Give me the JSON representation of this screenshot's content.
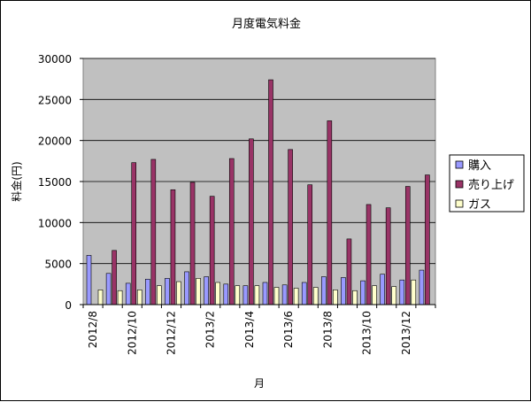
{
  "chart_data": {
    "type": "bar",
    "title": "月度電気料金",
    "xlabel": "月",
    "ylabel": "料金(円)",
    "ylim": [
      0,
      30000
    ],
    "y_ticks": [
      0,
      5000,
      10000,
      15000,
      20000,
      25000,
      30000
    ],
    "grid": true,
    "legend_position": "right",
    "categories": [
      "2012/8",
      "2012/9",
      "2012/10",
      "2012/11",
      "2012/12",
      "2013/1",
      "2013/2",
      "2013/3",
      "2013/4",
      "2013/5",
      "2013/6",
      "2013/7",
      "2013/8",
      "2013/9",
      "2013/10",
      "2013/11",
      "2013/12",
      "2014/1"
    ],
    "x_tick_labels": [
      "2012/8",
      "",
      "2012/10",
      "",
      "2012/12",
      "",
      "2013/2",
      "",
      "2013/4",
      "",
      "2013/6",
      "",
      "2013/8",
      "",
      "2013/10",
      "",
      "2013/12",
      ""
    ],
    "series": [
      {
        "name": "購入",
        "color": "#9999ff",
        "values": [
          6000,
          3800,
          2600,
          3100,
          3200,
          4000,
          3400,
          2500,
          2300,
          2700,
          2400,
          2700,
          3400,
          3300,
          2900,
          3700,
          3000,
          4200
        ]
      },
      {
        "name": "売り上げ",
        "color": "#993366",
        "values": [
          0,
          6600,
          17300,
          17700,
          14000,
          14900,
          13200,
          17800,
          20200,
          27400,
          18900,
          14600,
          22400,
          8000,
          12200,
          11800,
          14400,
          15800
        ]
      },
      {
        "name": "ガス",
        "color": "#ffffcc",
        "values": [
          1800,
          1700,
          1800,
          2300,
          2800,
          3200,
          2700,
          2300,
          2300,
          2100,
          2000,
          2100,
          1800,
          1700,
          2300,
          2200,
          3000,
          0
        ]
      }
    ]
  }
}
